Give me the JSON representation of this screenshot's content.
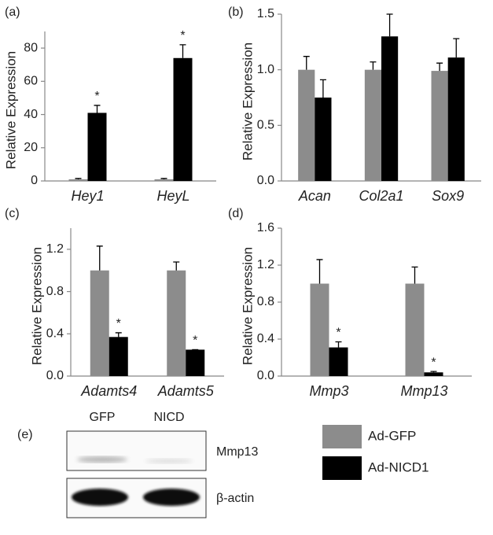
{
  "chart_data": [
    {
      "type": "bar",
      "panel": "(a)",
      "ylabel": "Relative Expression",
      "categories": [
        "Hey1",
        "HeyL"
      ],
      "series": [
        {
          "color": "#8c8c8c",
          "values": [
            1,
            1
          ],
          "errors": [
            0.5,
            0.5
          ],
          "significance": [
            null,
            null
          ]
        },
        {
          "color": "#000000",
          "values": [
            41,
            74
          ],
          "errors": [
            4.5,
            8
          ],
          "significance": [
            "*",
            "*"
          ]
        }
      ],
      "ylim": [
        0,
        90
      ],
      "yticks": [
        0,
        20,
        40,
        60,
        80
      ]
    },
    {
      "type": "bar",
      "panel": "(b)",
      "ylabel": "Relative Expression",
      "categories": [
        "Acan",
        "Col2a1",
        "Sox9"
      ],
      "series": [
        {
          "color": "#8c8c8c",
          "values": [
            1.0,
            1.0,
            0.99
          ],
          "errors": [
            0.12,
            0.07,
            0.07
          ],
          "significance": [
            null,
            null,
            null
          ]
        },
        {
          "color": "#000000",
          "values": [
            0.75,
            1.3,
            1.11
          ],
          "errors": [
            0.16,
            0.2,
            0.17
          ],
          "significance": [
            null,
            null,
            null
          ]
        }
      ],
      "ylim": [
        0,
        1.5
      ],
      "yticks": [
        {
          "value": 0,
          "label": "0.0"
        },
        0.5,
        {
          "value": 1,
          "label": "1.0"
        },
        1.5
      ]
    },
    {
      "type": "bar",
      "panel": "(c)",
      "ylabel": "Relative Expression",
      "categories": [
        "Adamts4",
        "Adamts5"
      ],
      "series": [
        {
          "color": "#8c8c8c",
          "values": [
            1.0,
            1.0
          ],
          "errors": [
            0.23,
            0.08
          ],
          "significance": [
            null,
            null
          ]
        },
        {
          "color": "#000000",
          "values": [
            0.37,
            0.25
          ],
          "errors": [
            0.04,
            0
          ],
          "significance": [
            "*",
            "*"
          ]
        }
      ],
      "ylim": [
        0,
        1.4
      ],
      "yticks": [
        {
          "value": 0,
          "label": "0.0"
        },
        0.4,
        0.8,
        1.2
      ]
    },
    {
      "type": "bar",
      "panel": "(d)",
      "ylabel": "Relative Expression",
      "categories": [
        "Mmp3",
        "Mmp13"
      ],
      "series": [
        {
          "color": "#8c8c8c",
          "values": [
            1.0,
            1.0
          ],
          "errors": [
            0.26,
            0.18
          ],
          "significance": [
            null,
            null
          ]
        },
        {
          "color": "#000000",
          "values": [
            0.31,
            0.04
          ],
          "errors": [
            0.06,
            0.01
          ],
          "significance": [
            "*",
            "*"
          ]
        }
      ],
      "ylim": [
        0,
        1.6
      ],
      "yticks": [
        {
          "value": 0,
          "label": "0.0"
        },
        0.4,
        0.8,
        1.2,
        1.6
      ]
    }
  ],
  "legend": [
    {
      "name": "Ad-GFP",
      "color": "#8c8c8c"
    },
    {
      "name": "Ad-NICD1",
      "color": "#000000"
    }
  ],
  "blot": {
    "panel": "(e)",
    "columns": [
      "GFP",
      "NICD"
    ],
    "rows": [
      "Mmp13",
      "β-actin"
    ]
  }
}
